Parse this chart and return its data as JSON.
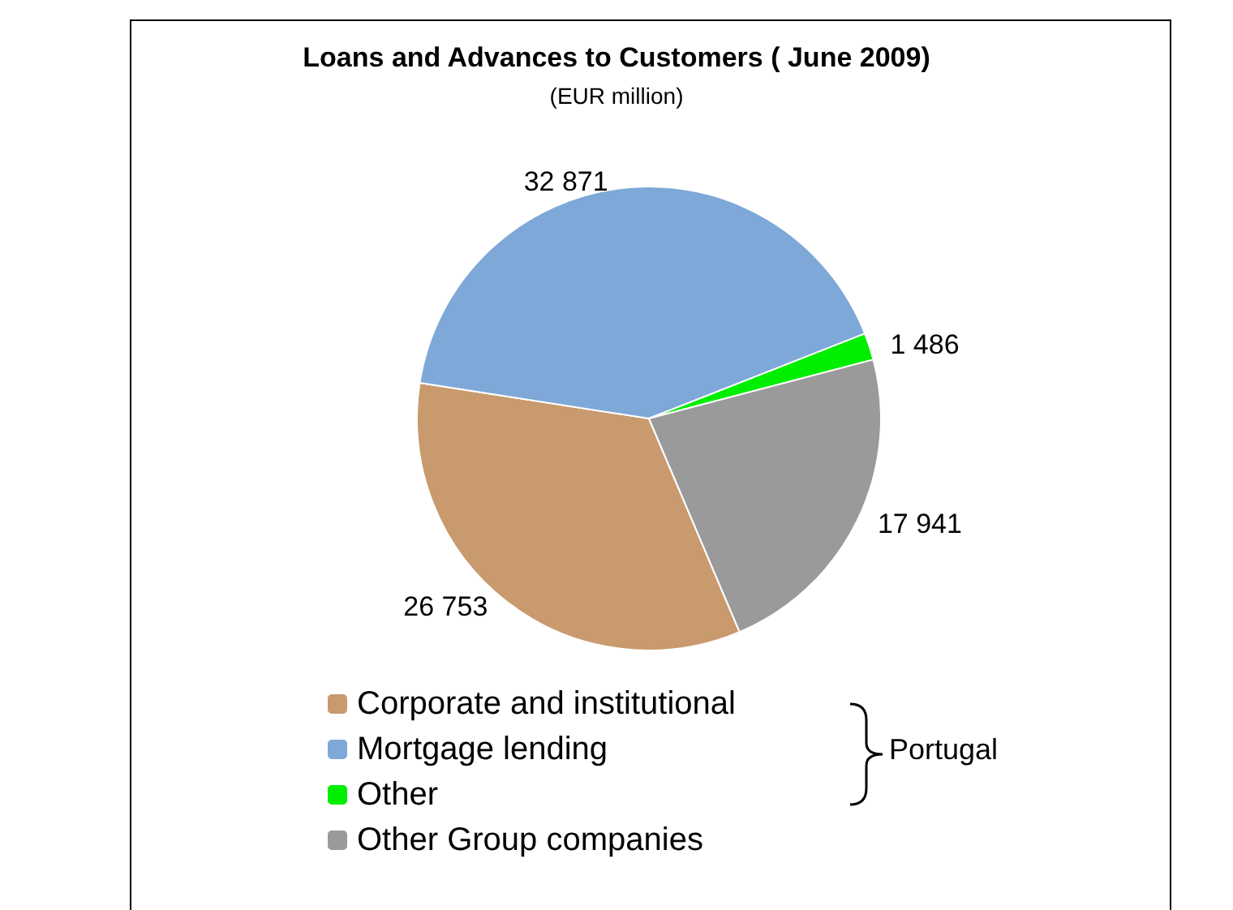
{
  "chart_data": {
    "type": "pie",
    "title": "Loans and Advances to Customers ( June 2009)",
    "subtitle": "(EUR million)",
    "categories": [
      "Corporate and institutional",
      "Mortgage lending",
      "Other",
      "Other Group companies"
    ],
    "values": [
      26753,
      32871,
      1486,
      17941
    ],
    "colors": [
      "#c99a6e",
      "#7ea8d8",
      "#00ee00",
      "#9a9a9a"
    ],
    "data_labels": true,
    "legend": "bottom",
    "annotations": [
      "Portugal"
    ]
  }
}
